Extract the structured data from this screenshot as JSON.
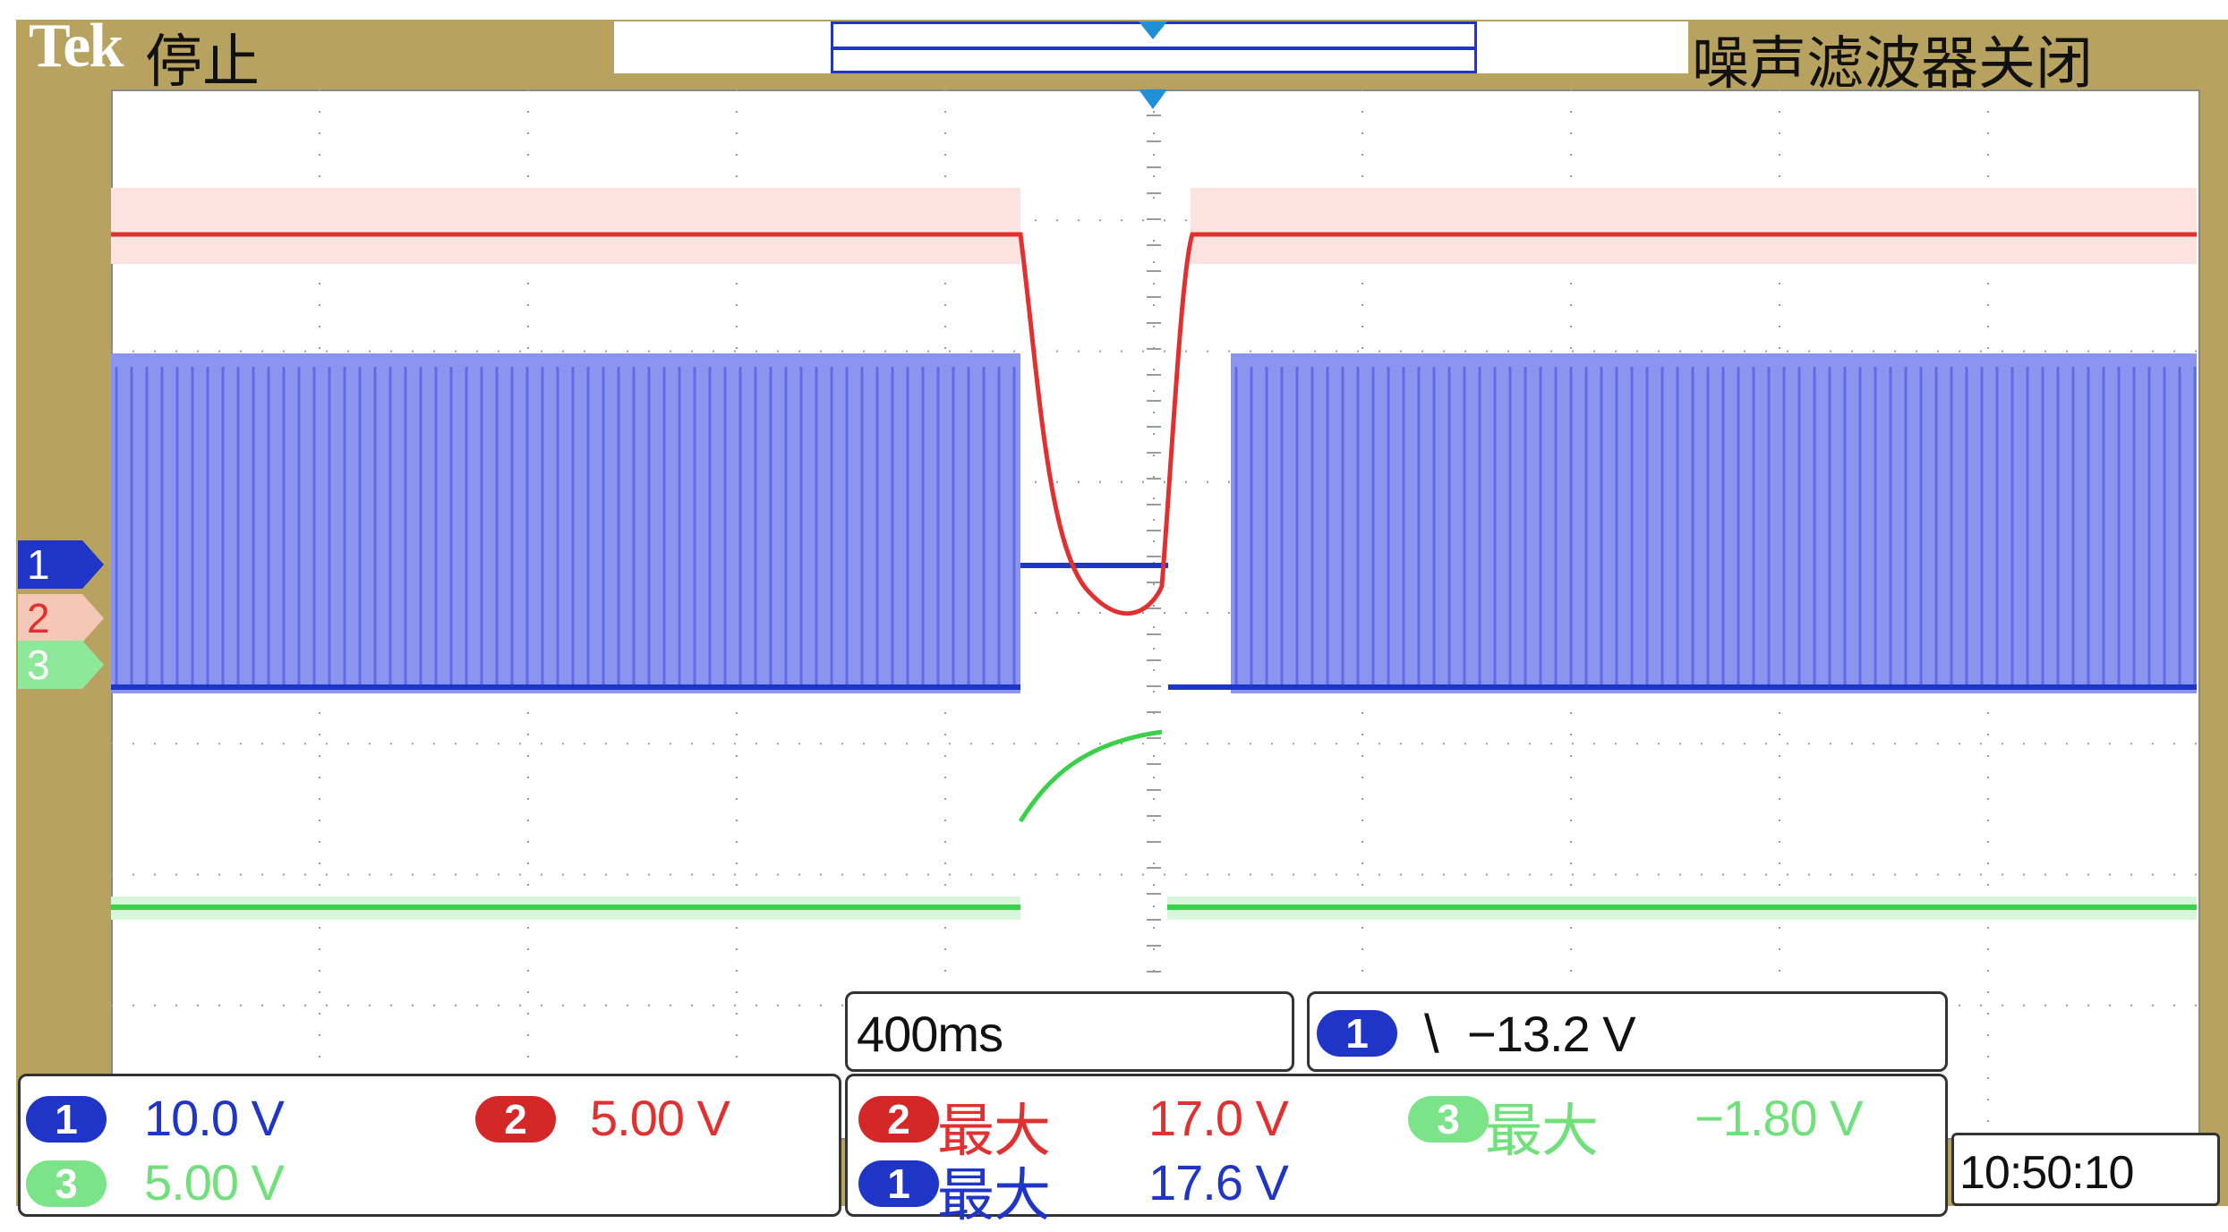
{
  "header": {
    "brand": "Tek",
    "status": "停止",
    "noise_filter": "噪声滤波器关闭"
  },
  "channel_markers": [
    {
      "id": "1",
      "color": "#1f35c8"
    },
    {
      "id": "2",
      "color": "#e03030"
    },
    {
      "id": "3",
      "color": "#6fe07a"
    }
  ],
  "timebase": "400ms",
  "trigger": {
    "channel": "1",
    "slope": "\\",
    "level": "−13.2 V"
  },
  "channels": [
    {
      "id": "1",
      "scale": "10.0 V",
      "color": "#1f35c8"
    },
    {
      "id": "2",
      "scale": "5.00 V",
      "color": "#e03030"
    },
    {
      "id": "3",
      "scale": "5.00 V",
      "color": "#6fe07a"
    }
  ],
  "measurements": [
    {
      "channel": "2",
      "label": "最大",
      "value": "17.0 V",
      "color": "#e03030"
    },
    {
      "channel": "3",
      "label": "最大",
      "value": "−1.80 V",
      "color": "#6fe07a"
    },
    {
      "channel": "1",
      "label": "最大",
      "value": "17.6 V",
      "color": "#1f35c8"
    }
  ],
  "clock": "10:50:10",
  "colors": {
    "frame": "#b7a35f",
    "ch1": "#1f35c8",
    "ch1_fill": "#8a95f0",
    "ch2": "#e03030",
    "ch3": "#3ad04a"
  }
}
